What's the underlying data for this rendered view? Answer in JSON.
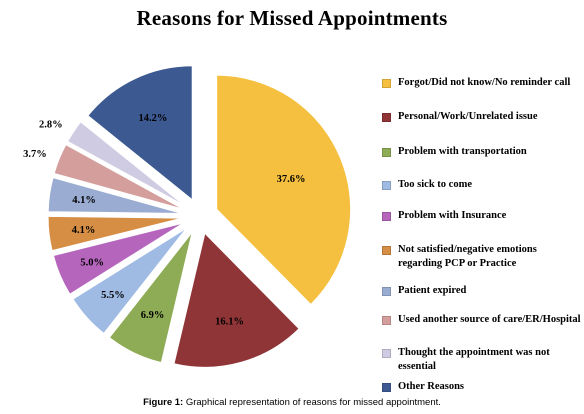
{
  "chart_data": {
    "type": "pie",
    "title": "Reasons for Missed Appointments",
    "slices": [
      {
        "label": "Forgot/Did not know/No reminder call",
        "value": 37.6,
        "display": "37.6%",
        "color": "#f5c040"
      },
      {
        "label": "Personal/Work/Unrelated issue",
        "value": 16.1,
        "display": "16.1%",
        "color": "#8f3537"
      },
      {
        "label": "Problem with transportation",
        "value": 6.9,
        "display": "6.9%",
        "color": "#8eab56"
      },
      {
        "label": "Too sick to come",
        "value": 5.5,
        "display": "5.5%",
        "color": "#9fbbe4"
      },
      {
        "label": "Problem with Insurance",
        "value": 5.0,
        "display": "5.0%",
        "color": "#b565bc"
      },
      {
        "label": "Not satisfied/negative emotions regarding PCP or Practice",
        "value": 4.1,
        "display": "4.1%",
        "color": "#d68e45"
      },
      {
        "label": "Patient expired",
        "value": 4.1,
        "display": "4.1%",
        "color": "#9aacd2"
      },
      {
        "label": "Used another source of care/ER/Hospital",
        "value": 3.7,
        "display": "3.7%",
        "color": "#d49e9c"
      },
      {
        "label": "Thought the appointment was not essential",
        "value": 2.8,
        "display": "2.8%",
        "color": "#cfcbe2"
      },
      {
        "label": "Other Reasons",
        "value": 14.2,
        "display": "14.2%",
        "color": "#3c5a91"
      }
    ],
    "legend_position": "right"
  },
  "caption": {
    "prefix": "Figure 1:",
    "text": " Graphical representation of reasons for missed appointment."
  }
}
